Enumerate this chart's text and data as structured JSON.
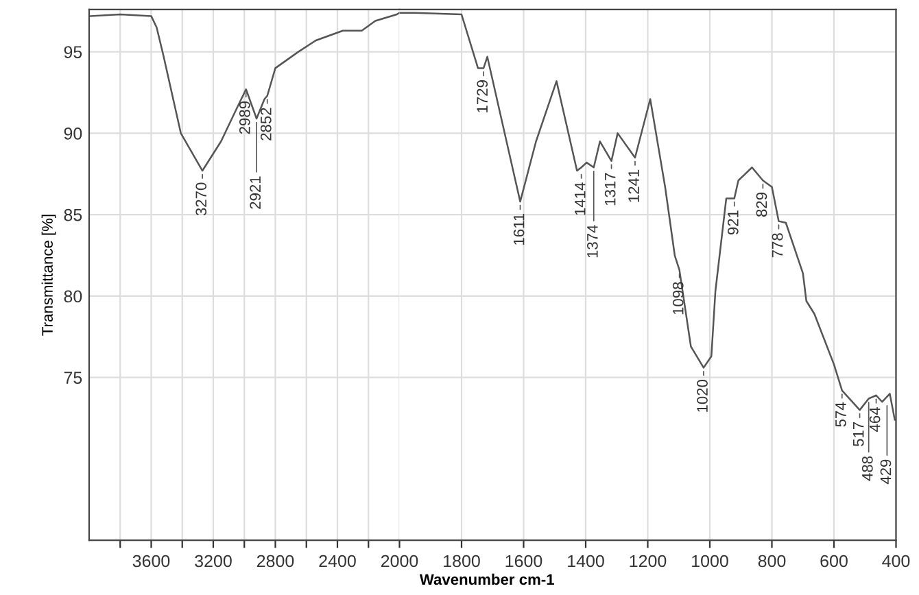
{
  "chart_data": [
    {
      "type": "line",
      "ylabel": "Transmittance [%]",
      "xlim": [
        4000,
        2000
      ],
      "ylim": [
        65,
        97.6
      ],
      "xticks": [
        {
          "value": 3800,
          "label": null
        },
        3600,
        {
          "value": 3400,
          "label": null
        },
        3200,
        {
          "value": 3000,
          "label": null
        },
        2800,
        {
          "value": 2600,
          "label": null
        },
        2400,
        {
          "value": 2200,
          "label": null
        },
        2000
      ],
      "yticks": [
        75,
        80,
        85,
        90,
        95
      ],
      "grid": true,
      "marker": "none",
      "line_style": "solid",
      "series": [
        {
          "color": "#555555",
          "x": [
            3990,
            3800,
            3600,
            3565,
            3522,
            3409,
            3270,
            3150,
            3050,
            2989,
            2921,
            2870,
            2852,
            2800,
            2652,
            2539,
            2365,
            2243,
            2156,
            2017,
            2000
          ],
          "values": [
            97.2,
            97.3,
            97.2,
            96.5,
            94.8,
            90.0,
            87.7,
            89.5,
            91.5,
            92.7,
            90.9,
            92.1,
            92.3,
            94.0,
            95.0,
            95.7,
            96.3,
            96.3,
            96.9,
            97.3,
            97.4
          ]
        }
      ],
      "annotations": [
        {
          "text": "3270",
          "x": 3270,
          "y": 87.7
        },
        {
          "text": "2989",
          "x": 2989,
          "y": 92.7
        },
        {
          "text": "2921",
          "x": 2921,
          "y": 90.9
        },
        {
          "text": "2852",
          "x": 2852,
          "y": 92.3
        }
      ]
    },
    {
      "type": "line",
      "xlabel": "Wavenumber cm-1",
      "xlim": [
        2000,
        400
      ],
      "ylim": [
        65,
        97.6
      ],
      "xticks": [
        1800,
        1600,
        1400,
        1200,
        1000,
        800,
        600,
        400
      ],
      "yticks": [
        75,
        80,
        85,
        90,
        95
      ],
      "grid": true,
      "tick_labels": "x",
      "marker": "none",
      "line_style": "solid",
      "series": [
        {
          "color": "#555555",
          "x": [
            2000,
            1950,
            1800,
            1747,
            1729,
            1717,
            1611,
            1560,
            1494,
            1428,
            1414,
            1397,
            1374,
            1354,
            1317,
            1297,
            1241,
            1192,
            1144,
            1113,
            1098,
            1061,
            1020,
            995,
            982,
            947,
            921,
            908,
            864,
            829,
            800,
            778,
            755,
            700,
            689,
            663,
            600,
            574,
            517,
            488,
            464,
            445,
            420,
            404
          ],
          "values": [
            97.4,
            97.4,
            97.3,
            94.0,
            94.0,
            94.7,
            85.8,
            89.5,
            93.2,
            87.7,
            87.9,
            88.2,
            87.9,
            89.5,
            88.3,
            90.0,
            88.5,
            92.1,
            86.7,
            82.5,
            81.6,
            76.9,
            75.6,
            76.3,
            80.3,
            86.0,
            86.0,
            87.1,
            87.9,
            87.1,
            86.7,
            84.6,
            84.5,
            81.4,
            79.7,
            78.9,
            75.8,
            74.2,
            73.0,
            73.7,
            73.9,
            73.5,
            74.0,
            72.4
          ]
        }
      ],
      "annotations": [
        {
          "text": "1729",
          "x": 1729,
          "y": 94.0
        },
        {
          "text": "1611",
          "x": 1611,
          "y": 85.8
        },
        {
          "text": "1414",
          "x": 1414,
          "y": 87.7
        },
        {
          "text": "1374",
          "x": 1374,
          "y": 87.9
        },
        {
          "text": "1317",
          "x": 1317,
          "y": 88.3
        },
        {
          "text": "1241",
          "x": 1241,
          "y": 88.5
        },
        {
          "text": "1098",
          "x": 1098,
          "y": 81.6
        },
        {
          "text": "1020",
          "x": 1020,
          "y": 75.6
        },
        {
          "text": "921",
          "x": 921,
          "y": 86.0
        },
        {
          "text": "829",
          "x": 829,
          "y": 87.1
        },
        {
          "text": "778",
          "x": 778,
          "y": 84.6
        },
        {
          "text": "574",
          "x": 574,
          "y": 74.2
        },
        {
          "text": "517",
          "x": 517,
          "y": 73.0
        },
        {
          "text": "488",
          "x": 488,
          "y": 73.7
        },
        {
          "text": "464",
          "x": 464,
          "y": 73.9
        },
        {
          "text": "429",
          "x": 429,
          "y": 73.5
        }
      ]
    }
  ]
}
